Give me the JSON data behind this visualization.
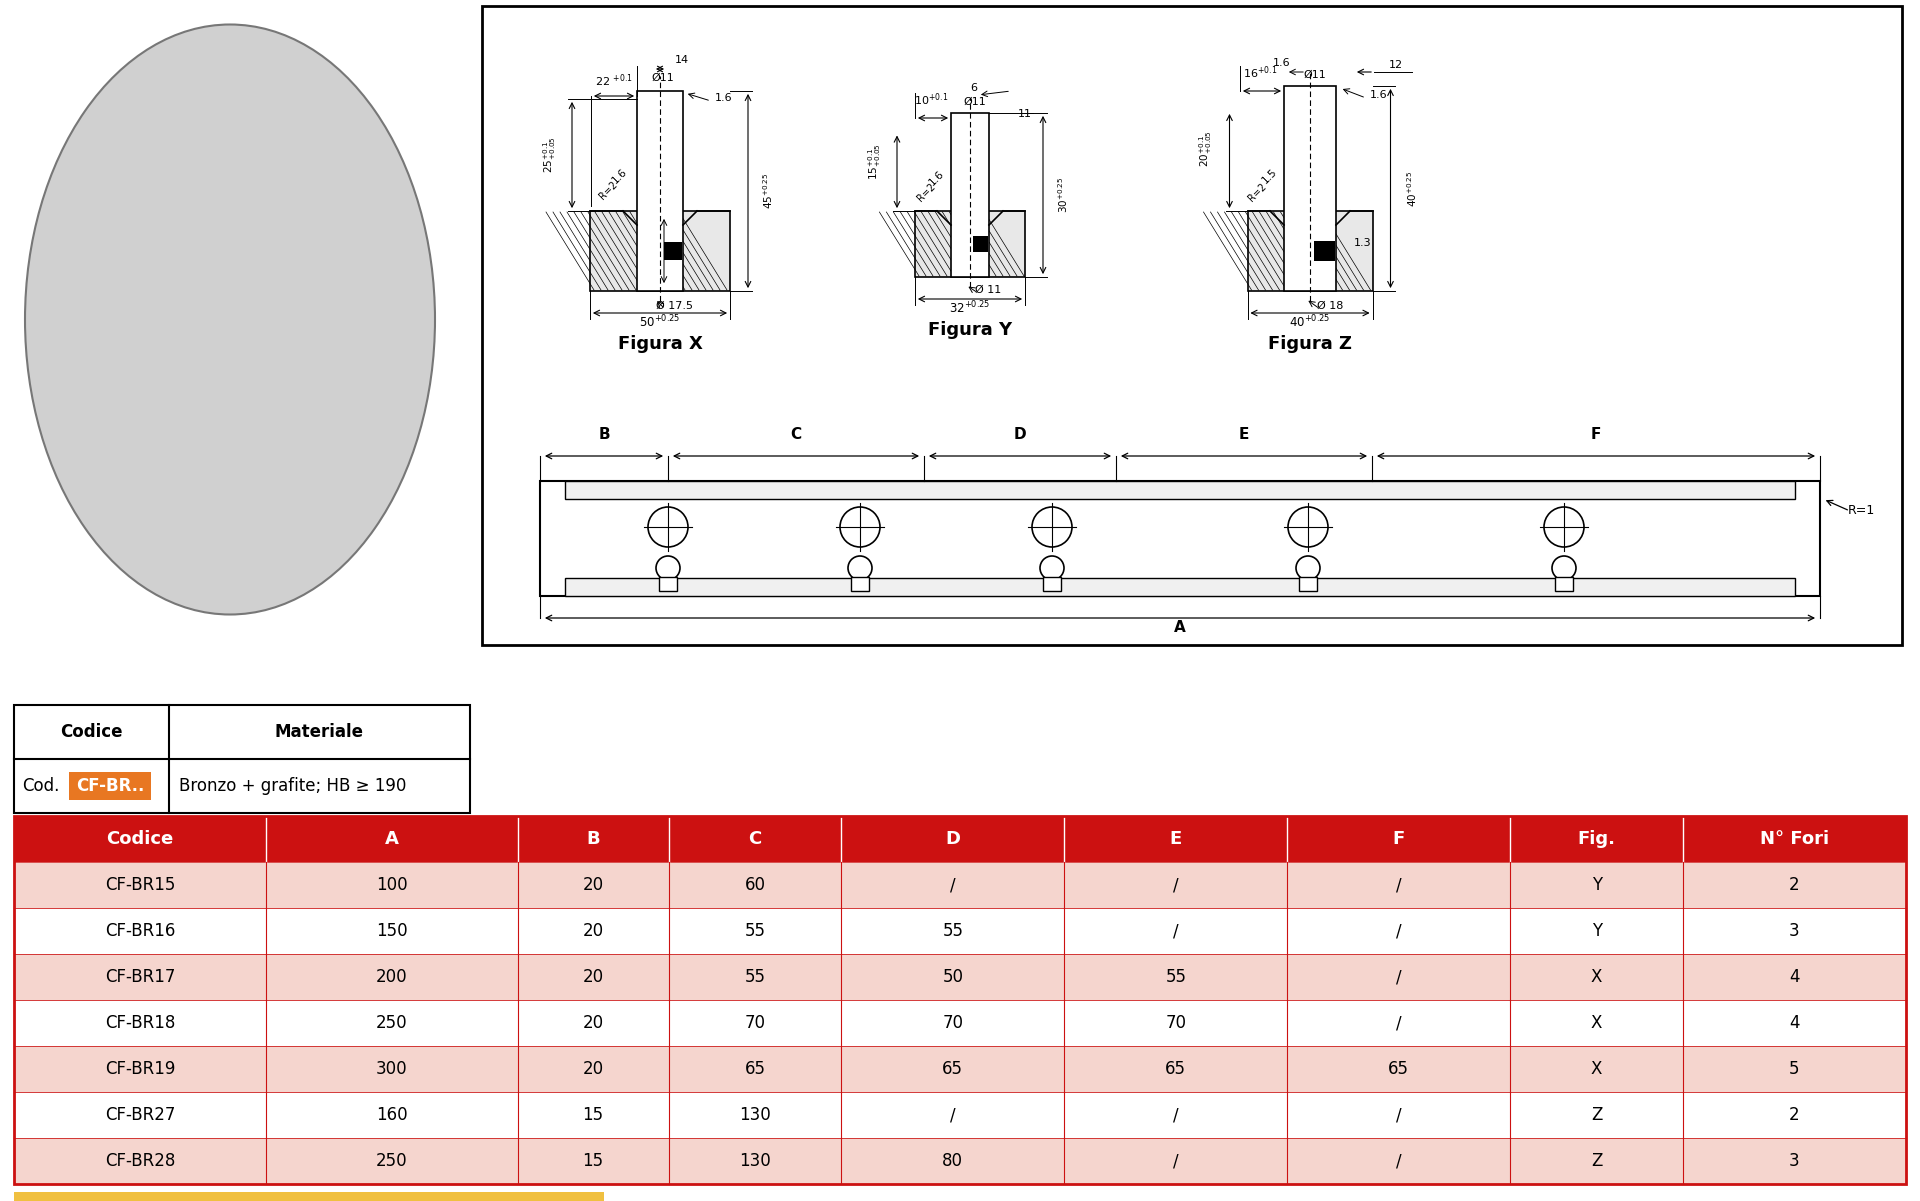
{
  "bg_color": "#ffffff",
  "header_color": "#cc1111",
  "header_text_color": "#ffffff",
  "row_color_odd": "#f5d5ce",
  "row_color_even": "#ffffff",
  "border_color": "#cc1111",
  "table_headers": [
    "Codice",
    "A",
    "B",
    "C",
    "D",
    "E",
    "F",
    "Fig.",
    "N° Fori"
  ],
  "table_rows": [
    [
      "CF-BR15",
      "100",
      "20",
      "60",
      "/",
      "/",
      "/",
      "Y",
      "2"
    ],
    [
      "CF-BR16",
      "150",
      "20",
      "55",
      "55",
      "/",
      "/",
      "Y",
      "3"
    ],
    [
      "CF-BR17",
      "200",
      "20",
      "55",
      "50",
      "55",
      "/",
      "X",
      "4"
    ],
    [
      "CF-BR18",
      "250",
      "20",
      "70",
      "70",
      "70",
      "/",
      "X",
      "4"
    ],
    [
      "CF-BR19",
      "300",
      "20",
      "65",
      "65",
      "65",
      "65",
      "X",
      "5"
    ],
    [
      "CF-BR27",
      "160",
      "15",
      "130",
      "/",
      "/",
      "/",
      "Z",
      "2"
    ],
    [
      "CF-BR28",
      "250",
      "15",
      "130",
      "80",
      "/",
      "/",
      "Z",
      "3"
    ]
  ],
  "cod_bg": "#e87722",
  "example_bg": "#f0c040",
  "draw_border": "#000000",
  "photo_bg": "#d0d0d0"
}
